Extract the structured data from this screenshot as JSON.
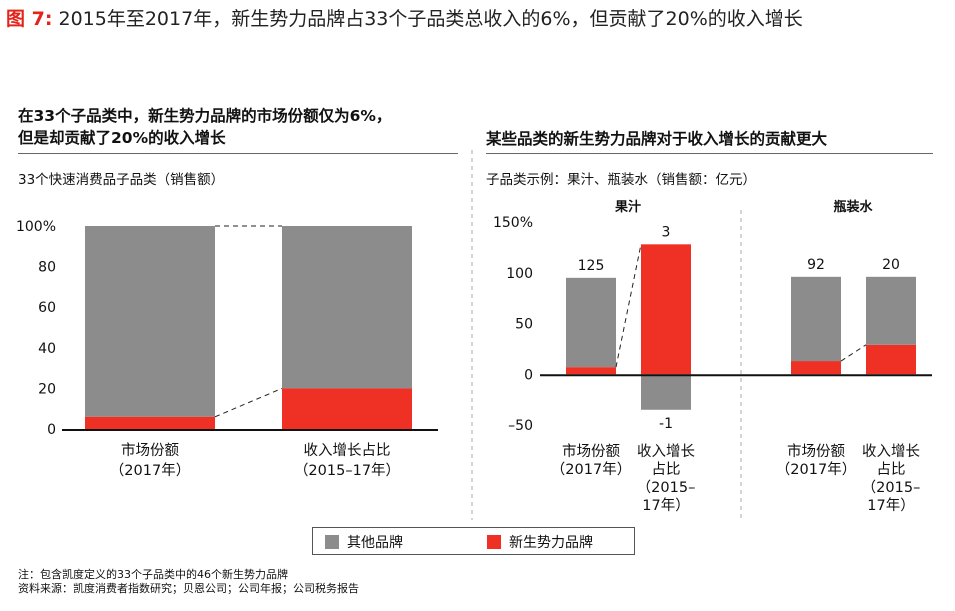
{
  "figure": {
    "label": "图 7:",
    "title": "2015年至2017年，新生势力品牌占33个子品类总收入的6%，但贡献了20%的收入增长"
  },
  "left_panel": {
    "title_line1": "在33个子品类中，新生势力品牌的市场份额仅为6%，",
    "title_line2": "但是却贡献了20%的收入增长",
    "subtitle": "33个快速消费品子品类（销售额）"
  },
  "right_panel": {
    "title": "某些品类的新生势力品牌对于收入增长的贡献更大",
    "subtitle": "子品类示例：果汁、瓶装水（销售额：亿元）"
  },
  "legend": {
    "items": [
      {
        "label": "其他品牌",
        "color": "#8c8c8c"
      },
      {
        "label": "新生势力品牌",
        "color": "#ee3124"
      }
    ]
  },
  "footnotes": {
    "note": "注：包含凯度定义的33个子品类中的46个新生势力品牌",
    "source": "资料来源：凯度消费者指数研究；贝恩公司；公司年报；公司税务报告"
  },
  "chart_data": [
    {
      "type": "bar",
      "stacked": true,
      "categories": [
        [
          "市场份额",
          "（2017年）"
        ],
        [
          "收入增长占比",
          "（2015–17年）"
        ]
      ],
      "series": [
        {
          "name": "其他品牌",
          "color": "#8c8c8c",
          "values": [
            94,
            80
          ]
        },
        {
          "name": "新生势力品牌",
          "color": "#ee3124",
          "values": [
            6,
            20
          ]
        }
      ],
      "ylim": [
        0,
        100
      ],
      "yticks": [
        "100%",
        "80",
        "60",
        "40",
        "20",
        "0"
      ],
      "ytick_values": [
        100,
        80,
        60,
        40,
        20,
        0
      ]
    },
    {
      "type": "bar",
      "stacked": true,
      "groups": [
        {
          "name": "果汁",
          "categories": [
            [
              "市场份额",
              "（2017年）"
            ],
            [
              "收入增长",
              "占比",
              "（2015–",
              "17年）"
            ]
          ],
          "series": [
            {
              "name": "其他品牌",
              "values": [
                88,
                -35
              ]
            },
            {
              "name": "新生势力品牌",
              "values": [
                7,
                128
              ]
            }
          ],
          "data_labels": [
            "125",
            "3",
            "-1"
          ]
        },
        {
          "name": "瓶装水",
          "categories": [
            [
              "市场份额",
              "（2017年）"
            ],
            [
              "收入增长",
              "占比",
              "（2015–",
              "17年）"
            ]
          ],
          "series": [
            {
              "name": "其他品牌",
              "values": [
                83,
                67
              ]
            },
            {
              "name": "新生势力品牌",
              "values": [
                13,
                29
              ]
            }
          ],
          "data_labels": [
            "92",
            "20"
          ]
        }
      ],
      "ylim": [
        -50,
        150
      ],
      "yticks": [
        "150%",
        "100",
        "50",
        "0",
        "–50"
      ],
      "ytick_values": [
        150,
        100,
        50,
        0,
        -50
      ]
    }
  ]
}
